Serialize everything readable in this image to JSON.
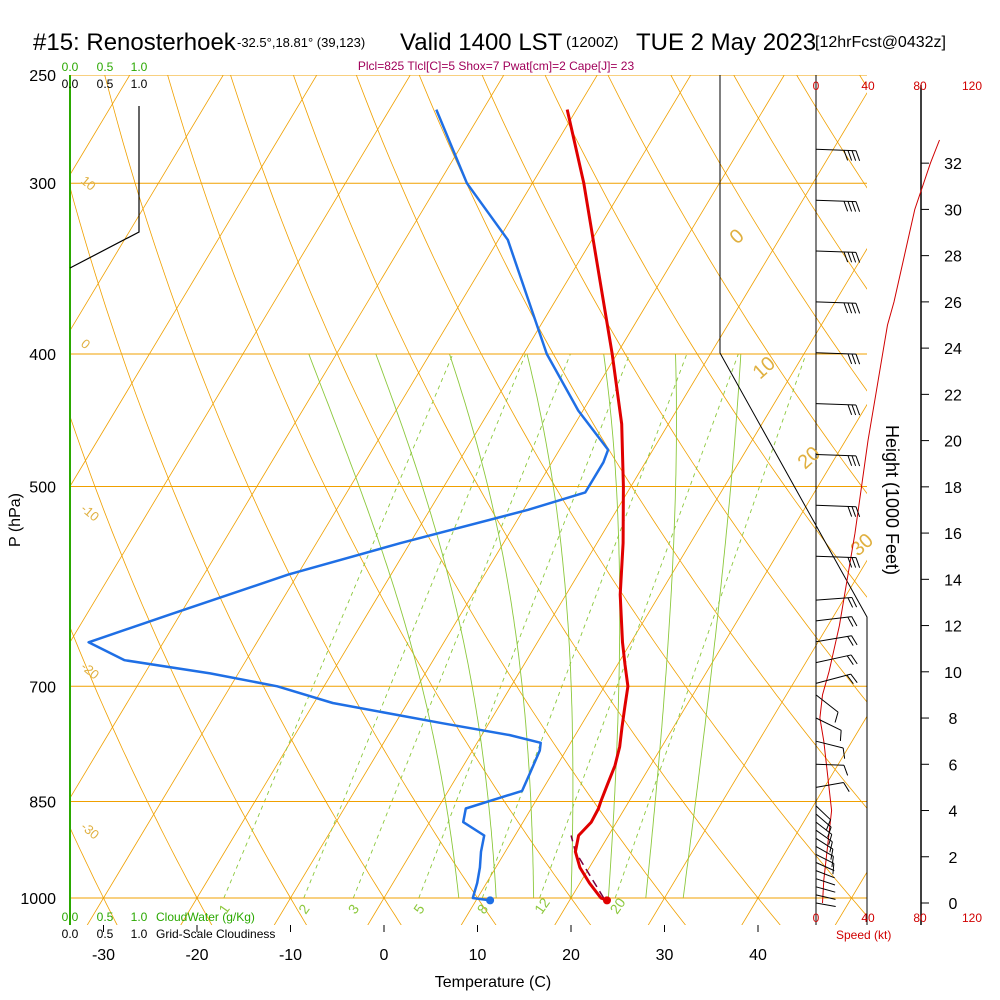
{
  "header": {
    "station": "#15: Renosterhoek",
    "coords": "-32.5°,18.81° (39,123)",
    "valid": "Valid 1400 LST",
    "zulu": "(1200Z)",
    "date": "TUE 2 May 2023",
    "fcst": "[12hrFcst@0432z]",
    "indices": "Plcl=825 Tlcl[C]=5 Shox=7 Pwat[cm]=2 Cape[J]= 23"
  },
  "colors": {
    "isobar": "#f0a000",
    "temp": "#e00000",
    "dewpoint": "#1f6fe5",
    "green": "#2aa800",
    "mixing": "#8cc83c",
    "index_text": "#a0005a",
    "speed": "#d00000"
  },
  "chart_data": {
    "type": "line",
    "xlabel": "Temperature (C)",
    "ylabel": "P (hPa)",
    "right_label": "Height (1000 Feet)",
    "x_ticks": [
      "-30",
      "-20",
      "-10",
      "0",
      "10",
      "20",
      "30",
      "40"
    ],
    "pressure_ticks": [
      "250",
      "300",
      "400",
      "500",
      "700",
      "850",
      "1000"
    ],
    "height_ticks": [
      "0",
      "2",
      "4",
      "6",
      "8",
      "10",
      "12",
      "14",
      "16",
      "18",
      "20",
      "22",
      "24",
      "26",
      "28",
      "30",
      "32"
    ],
    "skewt_guide_labels": [
      "10",
      "0",
      "-10",
      "-20",
      "-30"
    ],
    "theta_labels": [
      "0",
      "10",
      "20",
      "30"
    ],
    "mixing_ratio_labels": [
      "1",
      "2",
      "3",
      "5",
      "8",
      "12",
      "20"
    ],
    "cloud_scale_top_green": [
      "0.0",
      "0.5",
      "1.0"
    ],
    "cloud_scale_top_black": [
      "0.0",
      "0.5",
      "1.0"
    ],
    "cloud_scale_bottom_green": [
      "0.0",
      "0.5",
      "1.0"
    ],
    "cloud_scale_bottom_black": [
      "0.0",
      "0.5",
      "1.0"
    ],
    "cloud_water_label": "CloudWater (g/Kg)",
    "cloudiness_label": "Grid-Scale Cloudiness",
    "speed_top_ticks": [
      "0",
      "40",
      "80",
      "120"
    ],
    "speed_bottom_ticks": [
      "0",
      "40",
      "80",
      "120"
    ],
    "speed_label": "Speed (kt)",
    "series": [
      {
        "name": "temperature",
        "points": [
          {
            "p": 1004,
            "t": 24.0
          },
          {
            "p": 1000,
            "t": 23.2
          },
          {
            "p": 975,
            "t": 21.0
          },
          {
            "p": 950,
            "t": 19.0
          },
          {
            "p": 925,
            "t": 17.5
          },
          {
            "p": 900,
            "t": 16.8
          },
          {
            "p": 880,
            "t": 17.3
          },
          {
            "p": 860,
            "t": 17.2
          },
          {
            "p": 850,
            "t": 17.0
          },
          {
            "p": 825,
            "t": 16.6
          },
          {
            "p": 800,
            "t": 16.2
          },
          {
            "p": 775,
            "t": 15.5
          },
          {
            "p": 750,
            "t": 14.5
          },
          {
            "p": 725,
            "t": 13.5
          },
          {
            "p": 700,
            "t": 12.5
          },
          {
            "p": 675,
            "t": 10.8
          },
          {
            "p": 650,
            "t": 9.1
          },
          {
            "p": 600,
            "t": 5.8
          },
          {
            "p": 550,
            "t": 2.8
          },
          {
            "p": 500,
            "t": -0.8
          },
          {
            "p": 450,
            "t": -5.0
          },
          {
            "p": 400,
            "t": -10.5
          },
          {
            "p": 350,
            "t": -17.0
          },
          {
            "p": 300,
            "t": -24.5
          },
          {
            "p": 265,
            "t": -31.0
          }
        ]
      },
      {
        "name": "dewpoint",
        "points": [
          {
            "p": 1004,
            "t": 11.5
          },
          {
            "p": 1000,
            "t": 9.5
          },
          {
            "p": 975,
            "t": 9.0
          },
          {
            "p": 950,
            "t": 8.3
          },
          {
            "p": 925,
            "t": 7.4
          },
          {
            "p": 900,
            "t": 6.7
          },
          {
            "p": 880,
            "t": 3.6
          },
          {
            "p": 860,
            "t": 3.0
          },
          {
            "p": 835,
            "t": 7.9
          },
          {
            "p": 810,
            "t": 7.6
          },
          {
            "p": 780,
            "t": 7.2
          },
          {
            "p": 770,
            "t": 6.8
          },
          {
            "p": 760,
            "t": 3.0
          },
          {
            "p": 745,
            "t": -5.0
          },
          {
            "p": 720,
            "t": -18.0
          },
          {
            "p": 700,
            "t": -25.0
          },
          {
            "p": 685,
            "t": -33.0
          },
          {
            "p": 670,
            "t": -43.0
          },
          {
            "p": 650,
            "t": -48.0
          },
          {
            "p": 620,
            "t": -41.0
          },
          {
            "p": 580,
            "t": -31.0
          },
          {
            "p": 550,
            "t": -21.0
          },
          {
            "p": 520,
            "t": -9.5
          },
          {
            "p": 505,
            "t": -4.5
          },
          {
            "p": 480,
            "t": -4.5
          },
          {
            "p": 470,
            "t": -4.8
          },
          {
            "p": 440,
            "t": -10.5
          },
          {
            "p": 400,
            "t": -17.5
          },
          {
            "p": 330,
            "t": -29.0
          },
          {
            "p": 300,
            "t": -37.0
          },
          {
            "p": 265,
            "t": -45.0
          }
        ]
      },
      {
        "name": "parcel",
        "points": [
          {
            "p": 1000,
            "t": 23.5
          },
          {
            "p": 925,
            "t": 17.5
          },
          {
            "p": 900,
            "t": 16.0
          }
        ]
      }
    ],
    "wind_speed_profile_kt": [
      {
        "h_kft": 0,
        "s": 5
      },
      {
        "h_kft": 1,
        "s": 6
      },
      {
        "h_kft": 2,
        "s": 8
      },
      {
        "h_kft": 3,
        "s": 10
      },
      {
        "h_kft": 4,
        "s": 12
      },
      {
        "h_kft": 5,
        "s": 10
      },
      {
        "h_kft": 6,
        "s": 8
      },
      {
        "h_kft": 7,
        "s": 6
      },
      {
        "h_kft": 8,
        "s": 3
      },
      {
        "h_kft": 9,
        "s": 5
      },
      {
        "h_kft": 10,
        "s": 10
      },
      {
        "h_kft": 11,
        "s": 14
      },
      {
        "h_kft": 12,
        "s": 18
      },
      {
        "h_kft": 13,
        "s": 21
      },
      {
        "h_kft": 14,
        "s": 24
      },
      {
        "h_kft": 16,
        "s": 30
      },
      {
        "h_kft": 18,
        "s": 35
      },
      {
        "h_kft": 20,
        "s": 40
      },
      {
        "h_kft": 22,
        "s": 46
      },
      {
        "h_kft": 24,
        "s": 52
      },
      {
        "h_kft": 25,
        "s": 55
      },
      {
        "h_kft": 26,
        "s": 60
      },
      {
        "h_kft": 28,
        "s": 68
      },
      {
        "h_kft": 30,
        "s": 76
      },
      {
        "h_kft": 32,
        "s": 88
      },
      {
        "h_kft": 33,
        "s": 95
      }
    ]
  }
}
